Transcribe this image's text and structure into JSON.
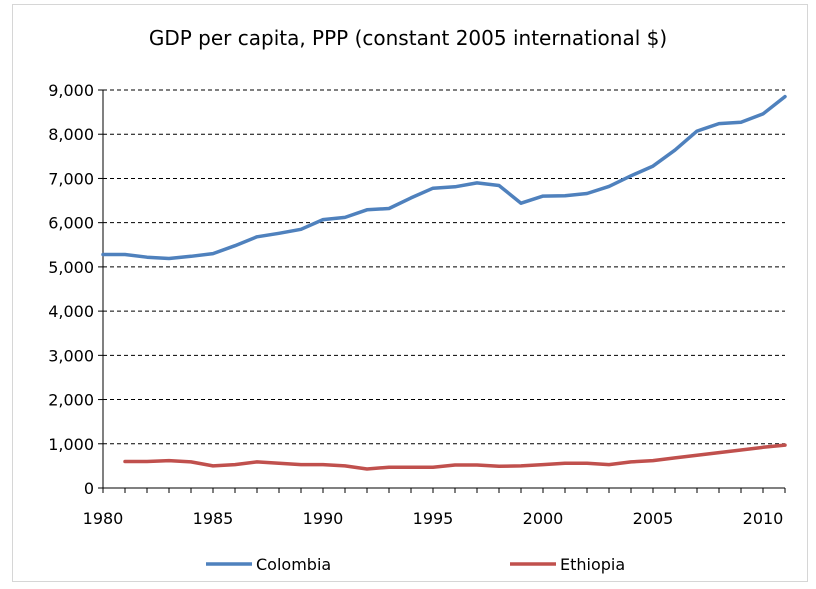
{
  "chart_data": {
    "type": "line",
    "title": "GDP per capita, PPP (constant 2005 international $)",
    "xlabel": "",
    "ylabel": "",
    "xlim": [
      1980,
      2011
    ],
    "ylim": [
      0,
      9000
    ],
    "x_ticks": [
      1980,
      1985,
      1990,
      1995,
      2000,
      2005,
      2010
    ],
    "x_tick_labels": [
      "1980",
      "1985",
      "1990",
      "1995",
      "2000",
      "2005",
      "2010"
    ],
    "y_ticks": [
      0,
      1000,
      2000,
      3000,
      4000,
      5000,
      6000,
      7000,
      8000,
      9000
    ],
    "y_tick_labels": [
      "0",
      "1,000",
      "2,000",
      "3,000",
      "4,000",
      "5,000",
      "6,000",
      "7,000",
      "8,000",
      "9,000"
    ],
    "grid": "horizontal-dashed",
    "legend_position": "bottom",
    "series": [
      {
        "name": "Colombia",
        "color": "#4f81bd",
        "x": [
          1980,
          1981,
          1982,
          1983,
          1984,
          1985,
          1986,
          1987,
          1988,
          1989,
          1990,
          1991,
          1992,
          1993,
          1994,
          1995,
          1996,
          1997,
          1998,
          1999,
          2000,
          2001,
          2002,
          2003,
          2004,
          2005,
          2006,
          2007,
          2008,
          2009,
          2010,
          2011
        ],
        "values": [
          5280,
          5280,
          5220,
          5190,
          5240,
          5300,
          5480,
          5680,
          5760,
          5850,
          6070,
          6120,
          6290,
          6320,
          6560,
          6780,
          6810,
          6900,
          6840,
          6440,
          6600,
          6610,
          6660,
          6820,
          7060,
          7280,
          7640,
          8070,
          8240,
          8270,
          8460,
          8850
        ]
      },
      {
        "name": "Ethiopia",
        "color": "#c0504d",
        "x": [
          1981,
          1982,
          1983,
          1984,
          1985,
          1986,
          1987,
          1988,
          1989,
          1990,
          1991,
          1992,
          1993,
          1994,
          1995,
          1996,
          1997,
          1998,
          1999,
          2000,
          2001,
          2002,
          2003,
          2004,
          2005,
          2006,
          2007,
          2008,
          2009,
          2010,
          2011
        ],
        "values": [
          600,
          600,
          620,
          590,
          500,
          530,
          590,
          560,
          530,
          530,
          500,
          430,
          470,
          470,
          470,
          520,
          520,
          490,
          500,
          530,
          560,
          560,
          530,
          590,
          620,
          680,
          740,
          800,
          860,
          920,
          970
        ]
      }
    ]
  }
}
